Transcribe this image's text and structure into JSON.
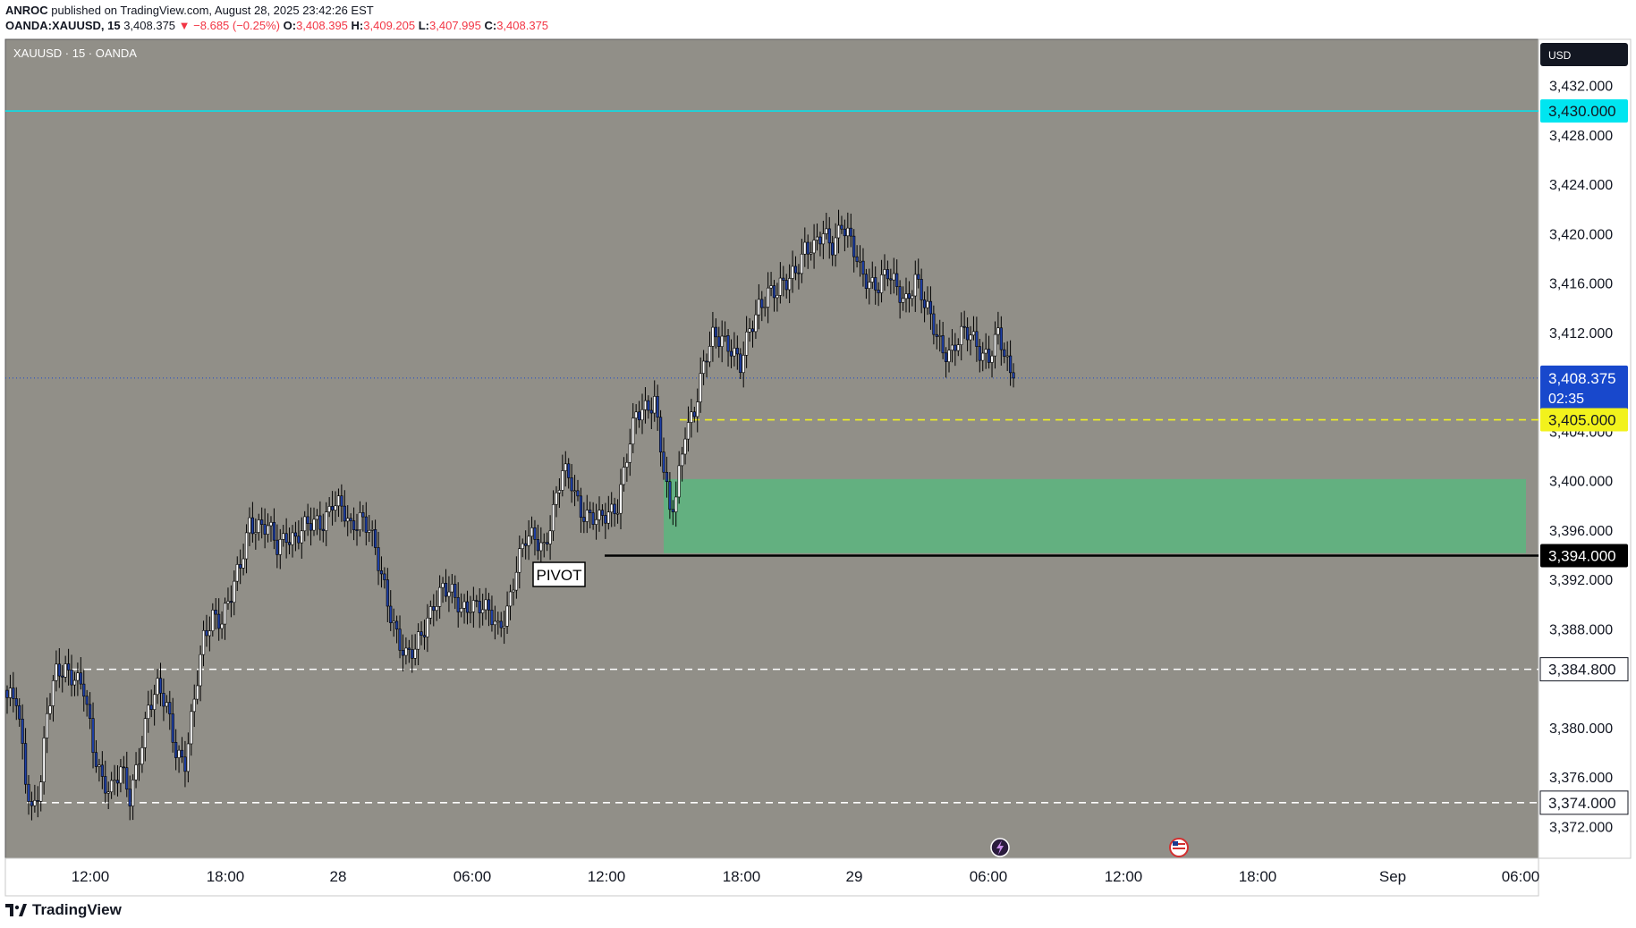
{
  "header": {
    "publisher": "ANROC",
    "published_text": "published on TradingView.com, August 28, 2025 23:42:26 EST",
    "symbol_line": "OANDA:XAUUSD, 15",
    "last": "3,408.375",
    "change": "▼ −8.685 (−0.25%)",
    "o_label": "O:",
    "o": "3,408.395",
    "h_label": "H:",
    "h": "3,409.205",
    "l_label": "L:",
    "l": "3,407.995",
    "c_label": "C:",
    "c": "3,408.375"
  },
  "legend": {
    "text": "XAUUSD · 15 · OANDA"
  },
  "currency": "USD",
  "footer": {
    "brand": "TradingView"
  },
  "colors": {
    "background": "#918f88",
    "up_candle": "#ffffff",
    "down_candle": "#1e3fa5",
    "cyan_level": "#00e5f0",
    "yellow_level": "#f2f21c",
    "zone": "#63b080",
    "current_price": "#1848cc"
  },
  "chart_data": {
    "type": "candlestick",
    "title": "XAUUSD · 15 · OANDA",
    "ylim": [
      3369.5,
      3435.8
    ],
    "y_ticks": [
      "3,432.000",
      "3,428.000",
      "3,424.000",
      "3,420.000",
      "3,416.000",
      "3,412.000",
      "3,404.000",
      "3,400.000",
      "3,396.000",
      "3,392.000",
      "3,388.000",
      "3,380.000",
      "3,376.000",
      "3,372.000"
    ],
    "x_ticks": [
      "12:00",
      "18:00",
      "28",
      "06:00",
      "12:00",
      "18:00",
      "29",
      "06:00",
      "12:00",
      "18:00",
      "Sep",
      "06:00"
    ],
    "levels": [
      {
        "label": "3,430.000",
        "value": 3430.0,
        "style": "solid",
        "color": "#00e5f0"
      },
      {
        "label": "3,405.000",
        "value": 3405.0,
        "style": "dashed",
        "color": "#f2f21c"
      },
      {
        "label": "3,394.000",
        "value": 3394.0,
        "style": "solid",
        "color": "#000000"
      },
      {
        "label": "3,384.800",
        "value": 3384.8,
        "style": "dashed",
        "color": "#ffffff"
      },
      {
        "label": "3,374.000",
        "value": 3374.0,
        "style": "dashed",
        "color": "#ffffff"
      }
    ],
    "current_price": {
      "label": "3,408.375",
      "value": 3408.375,
      "countdown": "02:35"
    },
    "zone": {
      "from": 3394.2,
      "to": 3400.2
    },
    "annotation": "PIVOT",
    "anchors": [
      [
        0,
        3382.5
      ],
      [
        3,
        3382.0
      ],
      [
        6,
        3376.0
      ],
      [
        8,
        3373.6
      ],
      [
        11,
        3376.0
      ],
      [
        13,
        3381.0
      ],
      [
        16,
        3384.2
      ],
      [
        19,
        3385.0
      ],
      [
        22,
        3384.5
      ],
      [
        25,
        3383.0
      ],
      [
        28,
        3378.0
      ],
      [
        31,
        3376.0
      ],
      [
        34,
        3375.5
      ],
      [
        37,
        3376.5
      ],
      [
        40,
        3374.0
      ],
      [
        43,
        3378.0
      ],
      [
        46,
        3382.0
      ],
      [
        49,
        3383.0
      ],
      [
        52,
        3381.5
      ],
      [
        55,
        3378.5
      ],
      [
        58,
        3377.5
      ],
      [
        61,
        3382.0
      ],
      [
        64,
        3387.0
      ],
      [
        67,
        3389.5
      ],
      [
        70,
        3389.0
      ],
      [
        73,
        3390.5
      ],
      [
        76,
        3393.0
      ],
      [
        79,
        3397.0
      ],
      [
        82,
        3396.5
      ],
      [
        85,
        3396.0
      ],
      [
        88,
        3394.5
      ],
      [
        91,
        3396.0
      ],
      [
        94,
        3395.5
      ],
      [
        97,
        3396.0
      ],
      [
        100,
        3396.5
      ],
      [
        103,
        3397.0
      ],
      [
        106,
        3398.5
      ],
      [
        109,
        3397.5
      ],
      [
        112,
        3396.0
      ],
      [
        115,
        3397.5
      ],
      [
        118,
        3396.5
      ],
      [
        121,
        3393.0
      ],
      [
        124,
        3390.0
      ],
      [
        127,
        3388.0
      ],
      [
        130,
        3386.0
      ],
      [
        133,
        3386.0
      ],
      [
        136,
        3388.0
      ],
      [
        139,
        3390.5
      ],
      [
        142,
        3391.5
      ],
      [
        145,
        3390.5
      ],
      [
        148,
        3389.5
      ],
      [
        151,
        3390.5
      ],
      [
        154,
        3390.0
      ],
      [
        157,
        3389.0
      ],
      [
        160,
        3388.0
      ],
      [
        163,
        3390.0
      ],
      [
        166,
        3393.0
      ],
      [
        169,
        3395.0
      ],
      [
        172,
        3395.5
      ],
      [
        175,
        3395.0
      ],
      [
        178,
        3397.5
      ],
      [
        181,
        3400.5
      ],
      [
        184,
        3400.0
      ],
      [
        187,
        3398.0
      ],
      [
        190,
        3397.0
      ],
      [
        193,
        3396.5
      ],
      [
        196,
        3397.5
      ],
      [
        199,
        3398.5
      ],
      [
        202,
        3402.0
      ],
      [
        205,
        3405.0
      ],
      [
        208,
        3406.0
      ],
      [
        211,
        3407.0
      ],
      [
        214,
        3401.0
      ],
      [
        216,
        3397.0
      ],
      [
        218,
        3398.5
      ],
      [
        221,
        3404.5
      ],
      [
        224,
        3406.0
      ],
      [
        227,
        3409.0
      ],
      [
        230,
        3411.5
      ],
      [
        233,
        3412.0
      ],
      [
        236,
        3411.0
      ],
      [
        239,
        3409.0
      ],
      [
        242,
        3412.0
      ],
      [
        245,
        3414.5
      ],
      [
        248,
        3415.5
      ],
      [
        251,
        3415.0
      ],
      [
        254,
        3416.0
      ],
      [
        257,
        3417.5
      ],
      [
        260,
        3419.0
      ],
      [
        263,
        3418.5
      ],
      [
        266,
        3420.0
      ],
      [
        269,
        3419.5
      ],
      [
        272,
        3421.0
      ],
      [
        275,
        3419.0
      ],
      [
        278,
        3417.0
      ],
      [
        281,
        3416.5
      ],
      [
        284,
        3416.0
      ],
      [
        287,
        3416.5
      ],
      [
        290,
        3415.5
      ],
      [
        293,
        3415.0
      ],
      [
        296,
        3416.5
      ],
      [
        299,
        3414.0
      ],
      [
        302,
        3412.5
      ],
      [
        305,
        3411.0
      ],
      [
        308,
        3410.5
      ],
      [
        311,
        3411.5
      ],
      [
        314,
        3412.0
      ],
      [
        317,
        3411.0
      ],
      [
        320,
        3410.0
      ],
      [
        323,
        3411.5
      ],
      [
        326,
        3409.5
      ],
      [
        328,
        3408.4
      ]
    ],
    "series_note": "15-minute OHLC candles, prices in USD"
  }
}
